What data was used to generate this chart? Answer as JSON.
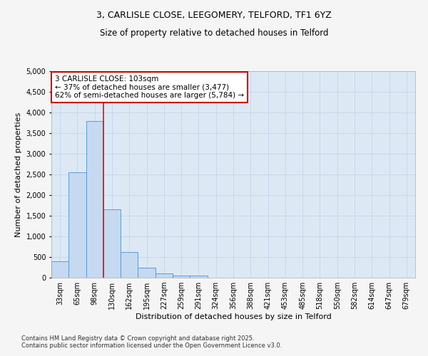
{
  "title_line1": "3, CARLISLE CLOSE, LEEGOMERY, TELFORD, TF1 6YZ",
  "title_line2": "Size of property relative to detached houses in Telford",
  "xlabel": "Distribution of detached houses by size in Telford",
  "ylabel": "Number of detached properties",
  "categories": [
    "33sqm",
    "65sqm",
    "98sqm",
    "130sqm",
    "162sqm",
    "195sqm",
    "227sqm",
    "259sqm",
    "291sqm",
    "324sqm",
    "356sqm",
    "388sqm",
    "421sqm",
    "453sqm",
    "485sqm",
    "518sqm",
    "550sqm",
    "582sqm",
    "614sqm",
    "647sqm",
    "679sqm"
  ],
  "values": [
    400,
    2550,
    3800,
    1650,
    620,
    240,
    100,
    50,
    50,
    0,
    0,
    0,
    0,
    0,
    0,
    0,
    0,
    0,
    0,
    0,
    0
  ],
  "bar_color": "#c5d9f1",
  "bar_edge_color": "#5b9bd5",
  "red_line_index": 2.5,
  "annotation_title": "3 CARLISLE CLOSE: 103sqm",
  "annotation_line1": "← 37% of detached houses are smaller (3,477)",
  "annotation_line2": "62% of semi-detached houses are larger (5,784) →",
  "annotation_box_facecolor": "#ffffff",
  "annotation_box_edgecolor": "#cc0000",
  "ylim": [
    0,
    5000
  ],
  "yticks": [
    0,
    500,
    1000,
    1500,
    2000,
    2500,
    3000,
    3500,
    4000,
    4500,
    5000
  ],
  "grid_color": "#c8d8ec",
  "plot_bg_color": "#dce9f5",
  "fig_bg_color": "#f5f5f5",
  "footer_line1": "Contains HM Land Registry data © Crown copyright and database right 2025.",
  "footer_line2": "Contains public sector information licensed under the Open Government Licence v3.0.",
  "title_fontsize": 9,
  "subtitle_fontsize": 8.5,
  "axis_label_fontsize": 8,
  "tick_fontsize": 7,
  "annotation_fontsize": 7.5,
  "footer_fontsize": 6
}
